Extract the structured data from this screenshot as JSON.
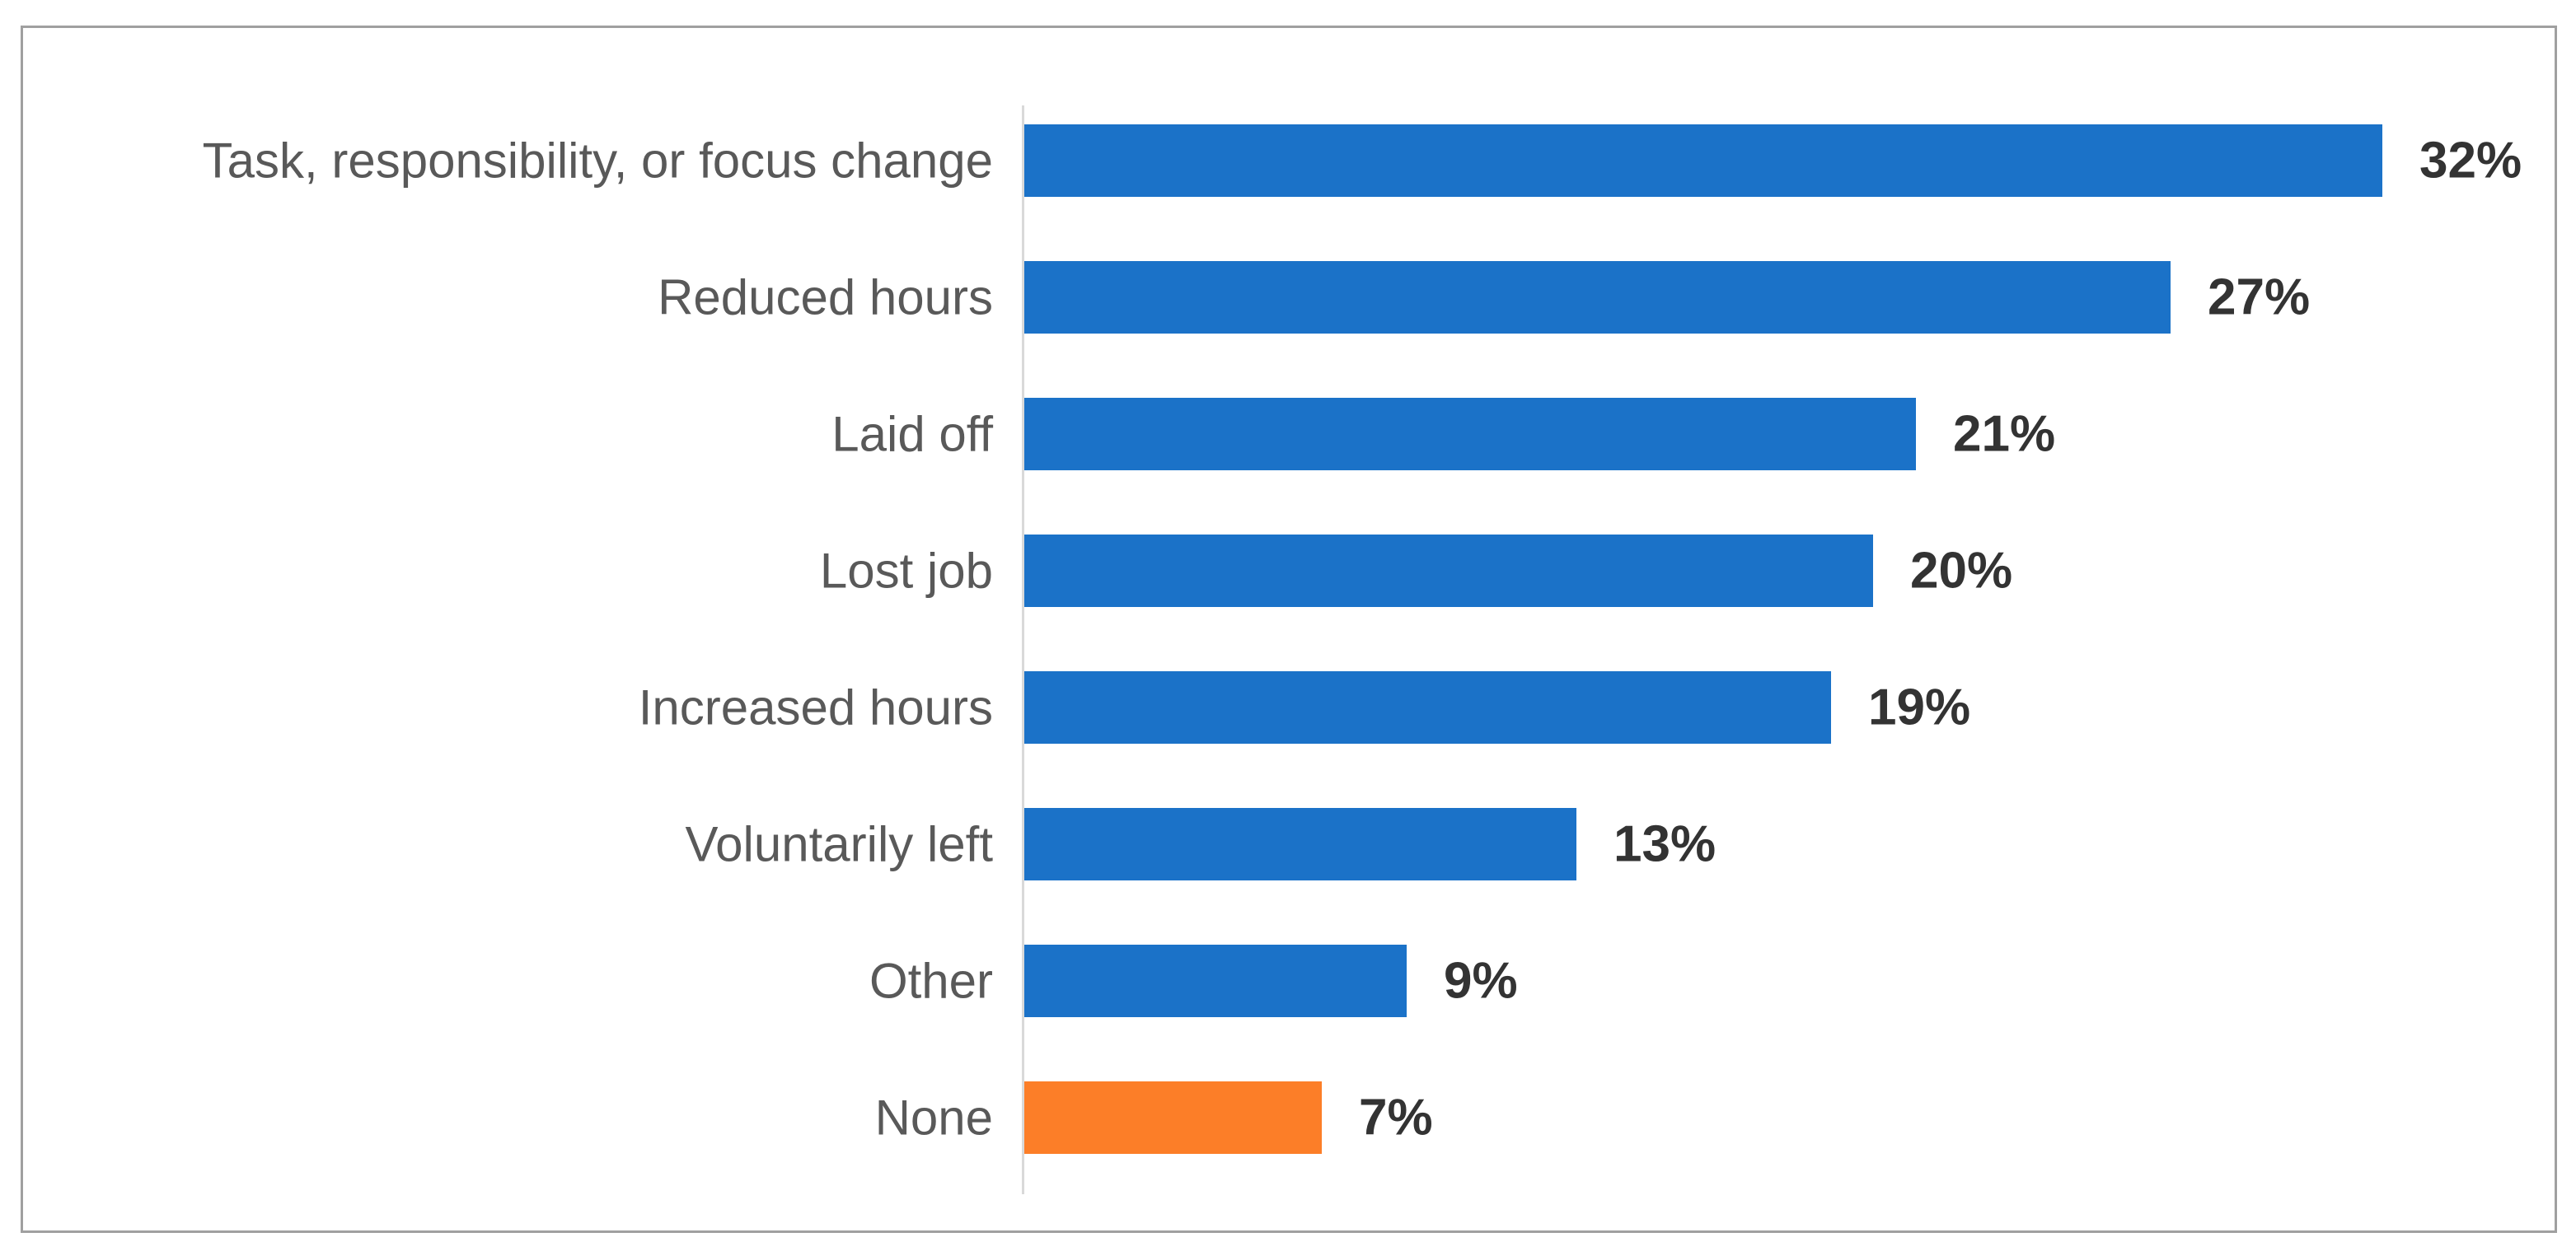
{
  "chart_data": {
    "type": "bar",
    "orientation": "horizontal",
    "title": "",
    "categories": [
      "Task, responsibility, or focus change",
      "Reduced hours",
      "Laid off",
      "Lost job",
      "Increased hours",
      "Voluntarily left",
      "Other",
      "None"
    ],
    "values": [
      32,
      27,
      21,
      20,
      19,
      13,
      9,
      7
    ],
    "value_labels": [
      "32%",
      "27%",
      "21%",
      "20%",
      "19%",
      "13%",
      "9%",
      "7%"
    ],
    "highlight_index": 7,
    "bar_color_default": "#1b72c8",
    "bar_color_highlight": "#fc7e28",
    "category_label_color": "#595959",
    "value_label_color": "#333333",
    "axis_line_color": "#d9d9d9",
    "frame_border_color": "#a0a0a0",
    "xlim": [
      0,
      36
    ],
    "grid": false,
    "legend": false
  }
}
